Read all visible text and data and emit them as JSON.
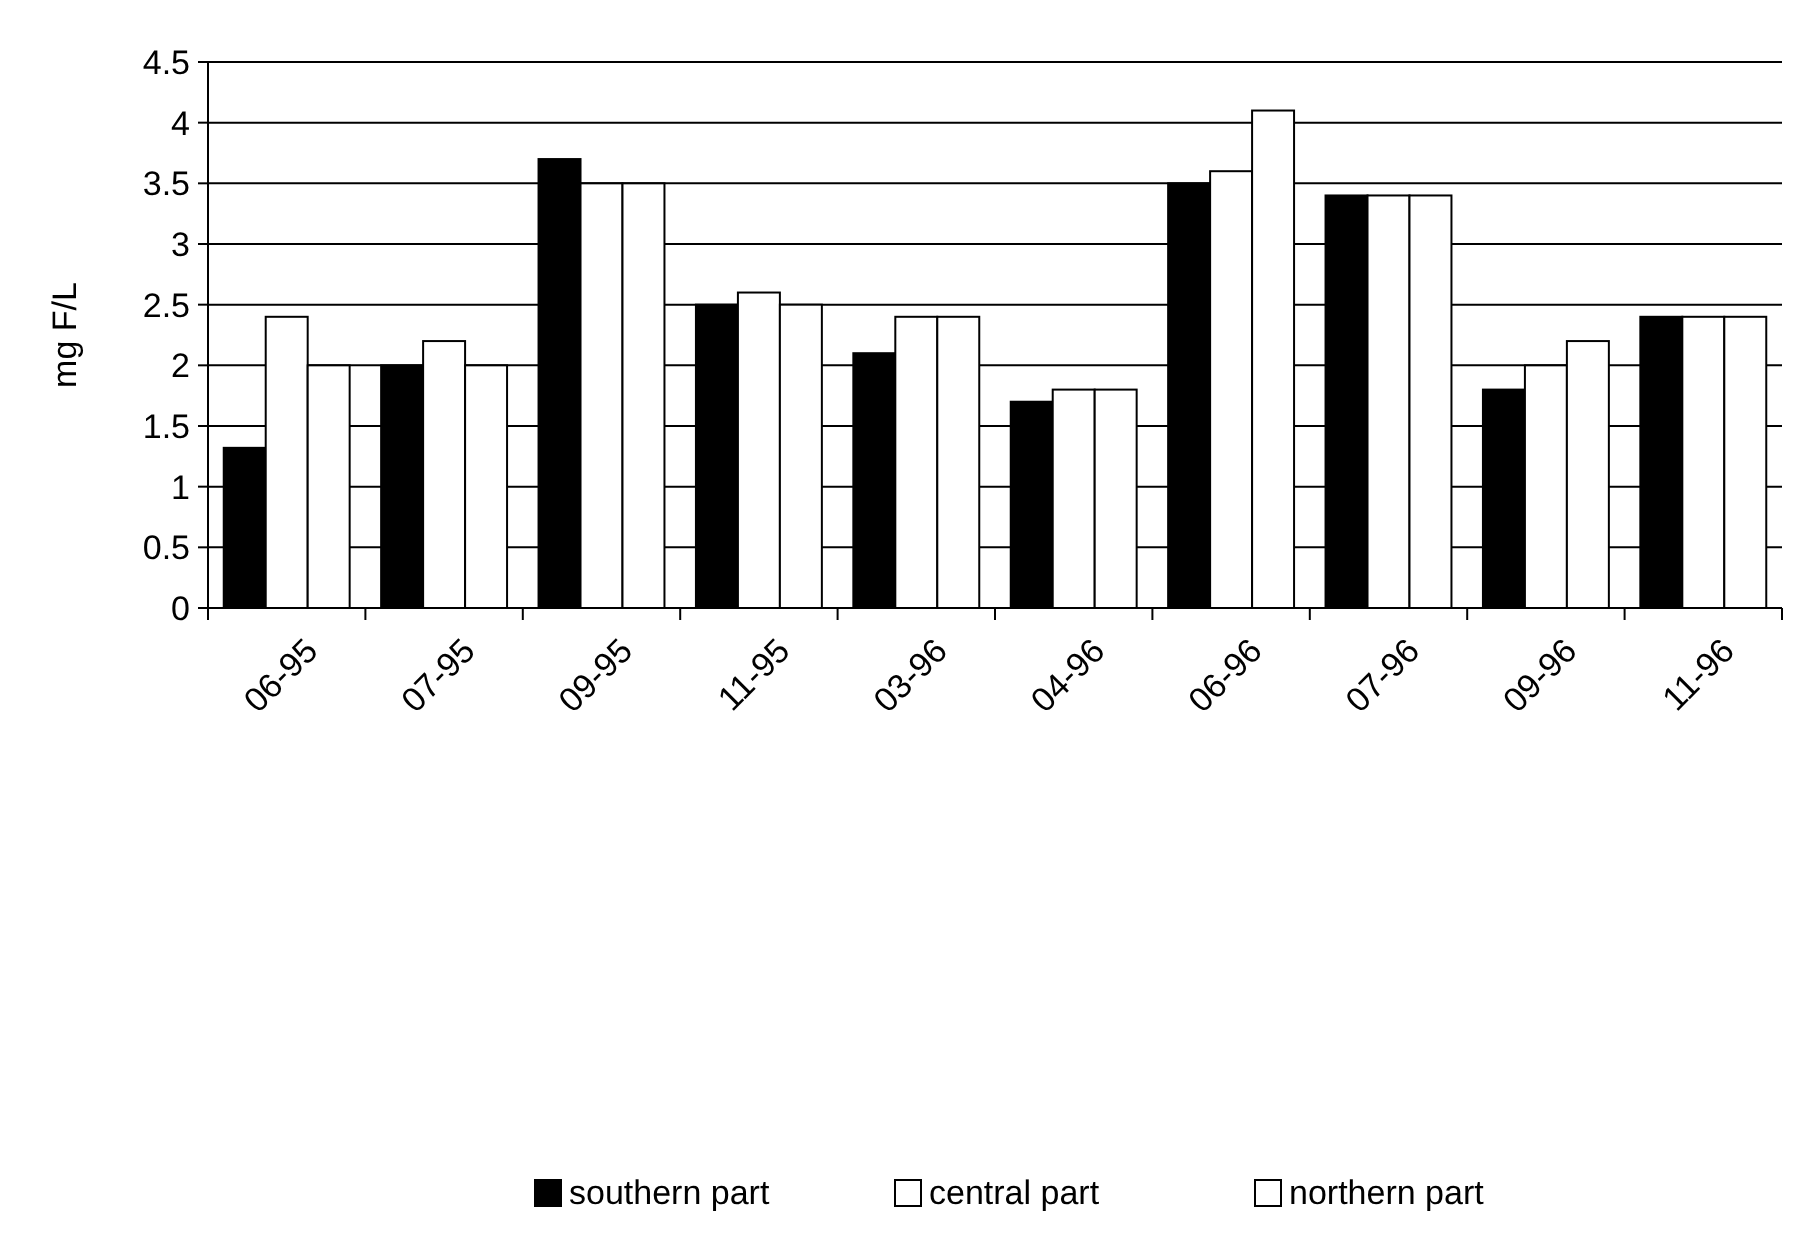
{
  "chart_data": {
    "type": "bar",
    "ylabel": "mg F/L",
    "categories": [
      "06-95",
      "07-95",
      "09-95",
      "11-95",
      "03-96",
      "04-96",
      "06-96",
      "07-96",
      "09-96",
      "11-96"
    ],
    "series": [
      {
        "name": "southern part",
        "color": "#000000",
        "values": [
          1.32,
          2.0,
          3.7,
          2.5,
          2.1,
          1.7,
          3.5,
          3.4,
          1.8,
          2.4
        ]
      },
      {
        "name": "central part",
        "color": "#ffffff",
        "values": [
          2.4,
          2.2,
          3.5,
          2.6,
          2.4,
          1.8,
          3.6,
          3.4,
          2.0,
          2.4
        ]
      },
      {
        "name": "northern part",
        "color": "#ffffff",
        "values": [
          2.0,
          2.0,
          3.5,
          2.5,
          2.4,
          1.8,
          4.1,
          3.4,
          2.2,
          2.4
        ]
      }
    ],
    "ylim": [
      0,
      4.5
    ],
    "yticks": [
      0,
      0.5,
      1,
      1.5,
      2,
      2.5,
      3,
      3.5,
      4,
      4.5
    ],
    "grid": "y",
    "legend": "bottom"
  }
}
